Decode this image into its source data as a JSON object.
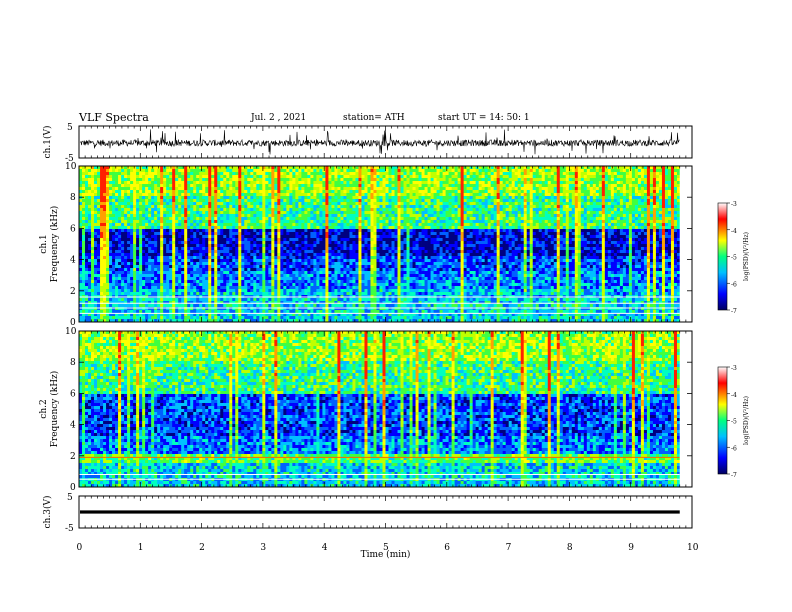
{
  "header": {
    "title": "VLF Spectra",
    "date": "Jul. 2 , 2021",
    "station": "station= ATH",
    "start": "start UT = 14: 50: 1"
  },
  "chart_data": [
    {
      "type": "line",
      "panel": "ch1-waveform",
      "ylabel": "ch.1(V)",
      "ylim": [
        -5,
        5
      ],
      "ytick_labels": [
        "5",
        "-5"
      ],
      "xlim": [
        0,
        10
      ],
      "note_series": "noisy broadband waveform, amplitude roughly -2.5 to 3 V with frequent spikes"
    },
    {
      "type": "heatmap",
      "panel": "ch1-spectrogram",
      "ylabel": "ch.1 Frequency (kHz)",
      "ylim": [
        0,
        10
      ],
      "yticks": [
        0,
        2,
        4,
        6,
        8,
        10
      ],
      "xlim": [
        0,
        10
      ],
      "colorbar": {
        "label": "log(PSD)(V²/Hz)",
        "range": [
          -7,
          -3
        ],
        "ticks": [
          -3,
          -4,
          -5,
          -6,
          -7
        ],
        "colors": [
          "#000080",
          "#0000ff",
          "#00bfff",
          "#00ff80",
          "#ffff00",
          "#ff0000",
          "#ffffff"
        ]
      }
    },
    {
      "type": "heatmap",
      "panel": "ch2-spectrogram",
      "ylabel": "ch.2 Frequency (kHz)",
      "ylim": [
        0,
        10
      ],
      "yticks": [
        0,
        2,
        4,
        6,
        8,
        10
      ],
      "xlim": [
        0,
        10
      ],
      "colorbar": {
        "label": "log(PSD)(V²/Hz)",
        "range": [
          -7,
          -3
        ],
        "ticks": [
          -3,
          -4,
          -5,
          -6,
          -7
        ]
      }
    },
    {
      "type": "line",
      "panel": "ch3-waveform",
      "ylabel": "ch.3(V)",
      "ylim": [
        -5,
        5
      ],
      "ytick_labels": [
        "5",
        "-5"
      ],
      "xlim": [
        0,
        10
      ],
      "xlabel": "Time (min)",
      "xticks": [
        0,
        1,
        2,
        3,
        4,
        5,
        6,
        7,
        8,
        9,
        10
      ],
      "data_end_min": 9.8
    }
  ],
  "colors": {
    "axis": "#000000",
    "background": "#ffffff"
  }
}
